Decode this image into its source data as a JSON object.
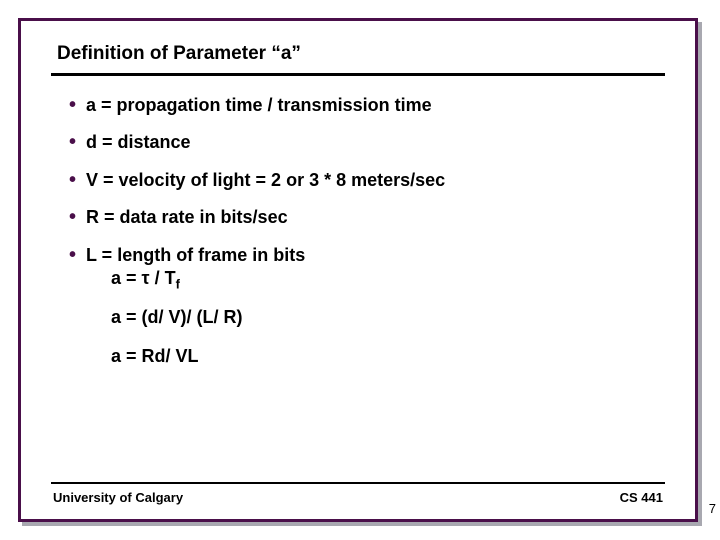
{
  "colors": {
    "border": "#4a0f4a",
    "shadow": "#a8a8b0",
    "text": "#000000",
    "bullet": "#4a0f4a",
    "background": "#ffffff"
  },
  "typography": {
    "title_fontsize": 19,
    "body_fontsize": 18,
    "footer_fontsize": 13,
    "font_family": "Arial",
    "weight": "bold"
  },
  "title": "Definition of Parameter  “a”",
  "bullets": [
    {
      "text": "a = propagation time / transmission time"
    },
    {
      "text": "d = distance"
    },
    {
      "text": "V = velocity of light = 2 or 3 * 8  meters/sec"
    },
    {
      "text": "R = data rate in bits/sec"
    },
    {
      "text": "L = length of frame in bits",
      "sub": "a = τ / T",
      "sub_subscript": "f"
    }
  ],
  "formulas": [
    "a = (d/ V)/ (L/ R)",
    "a = Rd/ VL"
  ],
  "footer": {
    "left": "University of Calgary",
    "right": "CS 441"
  },
  "page_number": "7"
}
